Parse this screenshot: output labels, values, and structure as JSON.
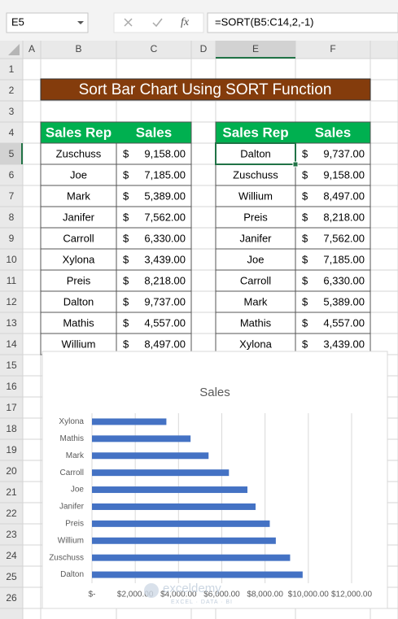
{
  "name_box": "E5",
  "fx_label": "fx",
  "formula": "=SORT(B5:C14,2,-1)",
  "column_headers": [
    "A",
    "B",
    "C",
    "D",
    "E",
    "F"
  ],
  "row_headers": [
    1,
    2,
    3,
    4,
    5,
    6,
    7,
    8,
    9,
    10,
    11,
    12,
    13,
    14,
    15,
    16,
    17,
    18,
    19,
    20,
    21,
    22,
    23,
    24,
    25,
    26
  ],
  "title": "Sort Bar Chart Using SORT Function",
  "table1": {
    "header": [
      "Sales Rep",
      "Sales"
    ],
    "rows": [
      [
        "Zuschuss",
        "$",
        "9,158.00"
      ],
      [
        "Joe",
        "$",
        "7,185.00"
      ],
      [
        "Mark",
        "$",
        "5,389.00"
      ],
      [
        "Janifer",
        "$",
        "7,562.00"
      ],
      [
        "Carroll",
        "$",
        "6,330.00"
      ],
      [
        "Xylona",
        "$",
        "3,439.00"
      ],
      [
        "Preis",
        "$",
        "8,218.00"
      ],
      [
        "Dalton",
        "$",
        "9,737.00"
      ],
      [
        "Mathis",
        "$",
        "4,557.00"
      ],
      [
        "Willium",
        "$",
        "8,497.00"
      ]
    ]
  },
  "table2": {
    "header": [
      "Sales Rep",
      "Sales"
    ],
    "rows": [
      [
        "Dalton",
        "$",
        "9,737.00"
      ],
      [
        "Zuschuss",
        "$",
        "9,158.00"
      ],
      [
        "Willium",
        "$",
        "8,497.00"
      ],
      [
        "Preis",
        "$",
        "8,218.00"
      ],
      [
        "Janifer",
        "$",
        "7,562.00"
      ],
      [
        "Joe",
        "$",
        "7,185.00"
      ],
      [
        "Carroll",
        "$",
        "6,330.00"
      ],
      [
        "Mark",
        "$",
        "5,389.00"
      ],
      [
        "Mathis",
        "$",
        "4,557.00"
      ],
      [
        "Xylona",
        "$",
        "3,439.00"
      ]
    ]
  },
  "chart_data": {
    "type": "bar",
    "orientation": "horizontal",
    "title": "Sales",
    "categories": [
      "Dalton",
      "Zuschuss",
      "Willium",
      "Preis",
      "Janifer",
      "Joe",
      "Carroll",
      "Mark",
      "Mathis",
      "Xylona"
    ],
    "values": [
      9737,
      9158,
      8497,
      8218,
      7562,
      7185,
      6330,
      5389,
      4557,
      3439
    ],
    "color": "#4472c4",
    "xlim": [
      0,
      12000
    ],
    "xticks": [
      {
        "value": 0,
        "label": "$-"
      },
      {
        "value": 2000,
        "label": "$2,000.00"
      },
      {
        "value": 4000,
        "label": "$4,000.00"
      },
      {
        "value": 6000,
        "label": "$6,000.00"
      },
      {
        "value": 8000,
        "label": "$8,000.00"
      },
      {
        "value": 10000,
        "label": "$10,000.00"
      },
      {
        "value": 12000,
        "label": "$12,000.00"
      }
    ],
    "grid": true
  },
  "watermark": {
    "brand": "exceldemy",
    "tagline": "EXCEL · DATA · BI"
  }
}
